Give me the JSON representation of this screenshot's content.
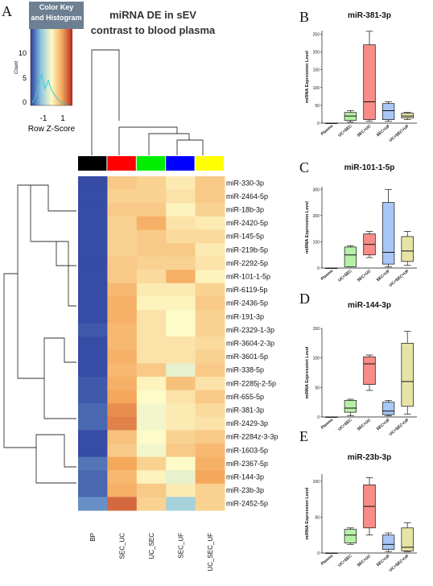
{
  "panel_letters": {
    "a": "A",
    "b": "B",
    "c": "C",
    "d": "D",
    "e": "E"
  },
  "colors": {
    "plasma": "#aaaaaa",
    "uc_sec": "#b6f0a6",
    "sec_uc": "#f78c88",
    "sec_uf": "#a9c7f5",
    "uc_sec_uf": "#e6e3a6",
    "col_BP": "#000000",
    "col_SEC_UC": "#ff0000",
    "col_UC_SEC": "#00ee00",
    "col_SEC_UF": "#0000ff",
    "col_UC_SEC_UF": "#ffff00"
  },
  "chart_data": [
    {
      "type": "heatmap",
      "title": "miRNA DE in sEV",
      "subtitle": "contrast to blood plasma",
      "columns": [
        "BP",
        "SEC_UC",
        "UC_SEC",
        "SEC_UF",
        "UC_SEC_UF"
      ],
      "rows": [
        "miR-330-3p",
        "miR-2464-5p",
        "miR-18b-3p",
        "miR-2420-5p",
        "miR-145-5p",
        "miR-219b-5p",
        "miR-2292-5p",
        "miR-101-1-5p",
        "miR-6119-5p",
        "miR-2436-5p",
        "miR-191-3p",
        "miR-2329-1-3p",
        "miR-3604-2-3p",
        "miR-3601-5p",
        "miR-338-5p",
        "miR-2285j-2-5p",
        "miR-655-5p",
        "miR-381-3p",
        "miR-2429-3p",
        "miR-2284z-3-3p",
        "miR-1603-5p",
        "miR-2367-5p",
        "miR-144-3p",
        "miR-23b-3p",
        "miR-2452-5p"
      ],
      "values": [
        [
          -1.9,
          0.6,
          0.5,
          0.2,
          0.6
        ],
        [
          -1.9,
          0.5,
          0.5,
          0.3,
          0.6
        ],
        [
          -1.9,
          0.6,
          0.6,
          0.1,
          0.5
        ],
        [
          -1.9,
          0.5,
          0.9,
          0.3,
          0.2
        ],
        [
          -1.9,
          0.5,
          0.6,
          0.4,
          0.4
        ],
        [
          -1.9,
          0.5,
          0.6,
          0.6,
          0.2
        ],
        [
          -1.9,
          0.6,
          0.5,
          0.5,
          0.3
        ],
        [
          -1.9,
          0.6,
          0.4,
          0.9,
          0.1
        ],
        [
          -1.9,
          0.8,
          0.2,
          0.2,
          0.5
        ],
        [
          -1.9,
          0.9,
          0.1,
          0.1,
          0.6
        ],
        [
          -1.9,
          0.9,
          0.3,
          0.0,
          0.5
        ],
        [
          -1.8,
          0.8,
          0.3,
          0.0,
          0.5
        ],
        [
          -1.9,
          0.8,
          0.3,
          0.3,
          0.4
        ],
        [
          -1.9,
          0.9,
          0.3,
          0.3,
          0.5
        ],
        [
          -1.9,
          0.8,
          0.6,
          -0.2,
          0.6
        ],
        [
          -1.8,
          0.9,
          0.1,
          0.7,
          0.3
        ],
        [
          -1.8,
          1.0,
          0.0,
          0.3,
          0.6
        ],
        [
          -1.7,
          1.2,
          -0.1,
          0.2,
          0.4
        ],
        [
          -1.7,
          1.3,
          -0.1,
          0.2,
          0.3
        ],
        [
          -1.9,
          0.7,
          0.0,
          0.5,
          0.6
        ],
        [
          -1.9,
          0.6,
          -0.1,
          0.6,
          0.8
        ],
        [
          -1.6,
          1.0,
          0.5,
          0.0,
          0.9
        ],
        [
          -1.7,
          0.8,
          0.1,
          -0.2,
          1.0
        ],
        [
          -1.7,
          0.9,
          0.6,
          0.2,
          0.5
        ],
        [
          -1.4,
          1.5,
          0.5,
          -0.8,
          0.5
        ]
      ],
      "color_key": {
        "title": "Color Key and Histogram",
        "xlabel": "Row Z-Score",
        "ylabel": "Count",
        "ticks_x": [
          "-1",
          "1"
        ],
        "ticks_y": [
          "0",
          "5",
          "10"
        ]
      }
    },
    {
      "type": "box",
      "panel": "B",
      "title": "miR-381-3p",
      "ylabel": "miRNA Expression Level",
      "ylim": [
        0,
        260
      ],
      "yticks": [
        0,
        50,
        100,
        150,
        200,
        250
      ],
      "categories": [
        "Plasma",
        "UC+SEC",
        "SEC+UC",
        "SEC+UF",
        "UC+SEC+UF"
      ],
      "boxes": [
        [
          0,
          0,
          0,
          0,
          0
        ],
        [
          3,
          8,
          20,
          30,
          35
        ],
        [
          5,
          10,
          60,
          220,
          258
        ],
        [
          5,
          10,
          35,
          55,
          60
        ],
        [
          10,
          15,
          20,
          28,
          30
        ]
      ]
    },
    {
      "type": "box",
      "panel": "C",
      "title": "miR-101-1-5p",
      "ylabel": "miRNA Expression Level",
      "ylim": [
        0,
        310
      ],
      "yticks": [
        0,
        100,
        200,
        300
      ],
      "categories": [
        "Plasma",
        "UC+SEC",
        "SEC+UC",
        "SEC+UF",
        "UC+SEC+UF"
      ],
      "boxes": [
        [
          0,
          0,
          0,
          0,
          0
        ],
        [
          5,
          5,
          50,
          80,
          85
        ],
        [
          40,
          50,
          90,
          130,
          140
        ],
        [
          5,
          15,
          60,
          250,
          300
        ],
        [
          10,
          25,
          65,
          120,
          140
        ]
      ]
    },
    {
      "type": "box",
      "panel": "D",
      "title": "miR-144-3p",
      "ylabel": "miRNA Expression Level",
      "ylim": [
        0,
        150
      ],
      "yticks": [
        0,
        50,
        100,
        150
      ],
      "categories": [
        "Plasma",
        "UC+SEC",
        "SEC+UC",
        "SEC+UF",
        "UC+SEC+UF"
      ],
      "boxes": [
        [
          0,
          0,
          0,
          0,
          0
        ],
        [
          2,
          8,
          15,
          28,
          30
        ],
        [
          45,
          55,
          90,
          102,
          105
        ],
        [
          2,
          4,
          10,
          25,
          28
        ],
        [
          5,
          18,
          60,
          125,
          145
        ]
      ]
    },
    {
      "type": "box",
      "panel": "E",
      "title": "miR-23b-3p",
      "ylabel": "miRNA Expression Level",
      "ylim": [
        0,
        110
      ],
      "yticks": [
        0,
        50,
        100
      ],
      "categories": [
        "Plasma",
        "UC+SEC",
        "SEC+UC",
        "SEC+UF",
        "UC+SEC+UF"
      ],
      "boxes": [
        [
          0,
          0,
          0,
          0,
          0
        ],
        [
          12,
          14,
          25,
          33,
          35
        ],
        [
          25,
          35,
          65,
          95,
          105
        ],
        [
          2,
          5,
          12,
          25,
          28
        ],
        [
          2,
          3,
          8,
          35,
          42
        ]
      ]
    }
  ]
}
